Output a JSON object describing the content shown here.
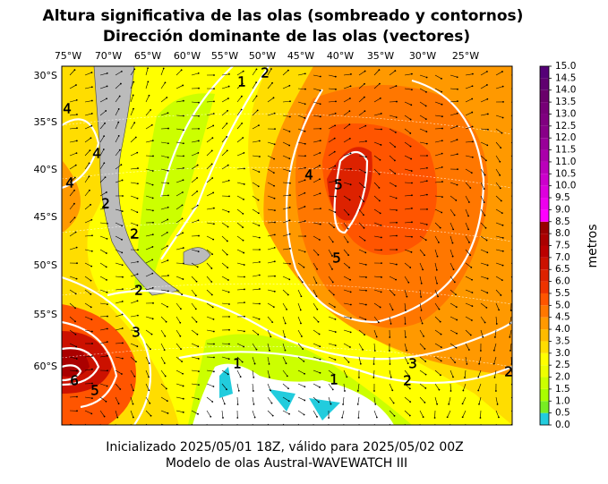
{
  "title": [
    "Altura significativa de las olas (sombreado y contornos)",
    "Dirección dominante de las olas (vectores)"
  ],
  "longitude_labels": [
    "75°W",
    "70°W",
    "65°W",
    "60°W",
    "55°W",
    "50°W",
    "45°W",
    "40°W",
    "35°W",
    "30°W",
    "25°W"
  ],
  "latitude_labels": [
    "30°S",
    "35°S",
    "40°S",
    "45°S",
    "50°S",
    "55°S",
    "60°S"
  ],
  "contour_labels": [
    1,
    2,
    4,
    4,
    2,
    2,
    4,
    3,
    6,
    5,
    2,
    1,
    1,
    2,
    3,
    4,
    5,
    5,
    2
  ],
  "colorbar": {
    "label": "metros",
    "ticks": [
      {
        "value": 0,
        "label": "0.0"
      },
      {
        "value": 0.5,
        "label": "0.5"
      },
      {
        "value": 1,
        "label": "1.0"
      },
      {
        "value": 1.5,
        "label": "1.5"
      },
      {
        "value": 2,
        "label": "2.0"
      },
      {
        "value": 2.5,
        "label": "2.5"
      },
      {
        "value": 3,
        "label": "3.0"
      },
      {
        "value": 3.5,
        "label": "3.5"
      },
      {
        "value": 4,
        "label": "4.0"
      },
      {
        "value": 4.5,
        "label": "4.5"
      },
      {
        "value": 5,
        "label": "5.0"
      },
      {
        "value": 5.5,
        "label": "5.5"
      },
      {
        "value": 6,
        "label": "6.0"
      },
      {
        "value": 6.5,
        "label": "6.5"
      },
      {
        "value": 7,
        "label": "7.0"
      },
      {
        "value": 7.5,
        "label": "7.5"
      },
      {
        "value": 8,
        "label": "8.0"
      },
      {
        "value": 8.5,
        "label": "8.5"
      },
      {
        "value": 9,
        "label": "9.0"
      },
      {
        "value": 9.5,
        "label": "9.5"
      },
      {
        "value": 10,
        "label": "10.0"
      },
      {
        "value": 10.5,
        "label": "10.5"
      },
      {
        "value": 11,
        "label": "11.0"
      },
      {
        "value": 11.5,
        "label": "11.5"
      },
      {
        "value": 12,
        "label": "12.0"
      },
      {
        "value": 12.5,
        "label": "12.5"
      },
      {
        "value": 13,
        "label": "13.0"
      },
      {
        "value": 13.5,
        "label": "13.5"
      },
      {
        "value": 14,
        "label": "14.0"
      },
      {
        "value": 14.5,
        "label": "14.5"
      },
      {
        "value": 15,
        "label": "15.0"
      }
    ],
    "colors": [
      "#22ccdd",
      "#77ee22",
      "#aaff00",
      "#ccff00",
      "#eeff00",
      "#ffff00",
      "#ffdd00",
      "#ffbb00",
      "#ff9900",
      "#ff7700",
      "#ff5500",
      "#ee3300",
      "#dd2200",
      "#cc1100",
      "#bb0000",
      "#aa0000",
      "#990000",
      "#ff00ff",
      "#ee00ee",
      "#dd00dd",
      "#cc00cc",
      "#bb00bb",
      "#aa00aa",
      "#990099",
      "#880088",
      "#800080",
      "#770077",
      "#6a006a",
      "#600070",
      "#550077"
    ]
  },
  "footer": [
    "Inicializado 2025/05/01 18Z, válido para 2025/05/02 00Z",
    "Modelo de olas Austral-WAVEWATCH III"
  ]
}
